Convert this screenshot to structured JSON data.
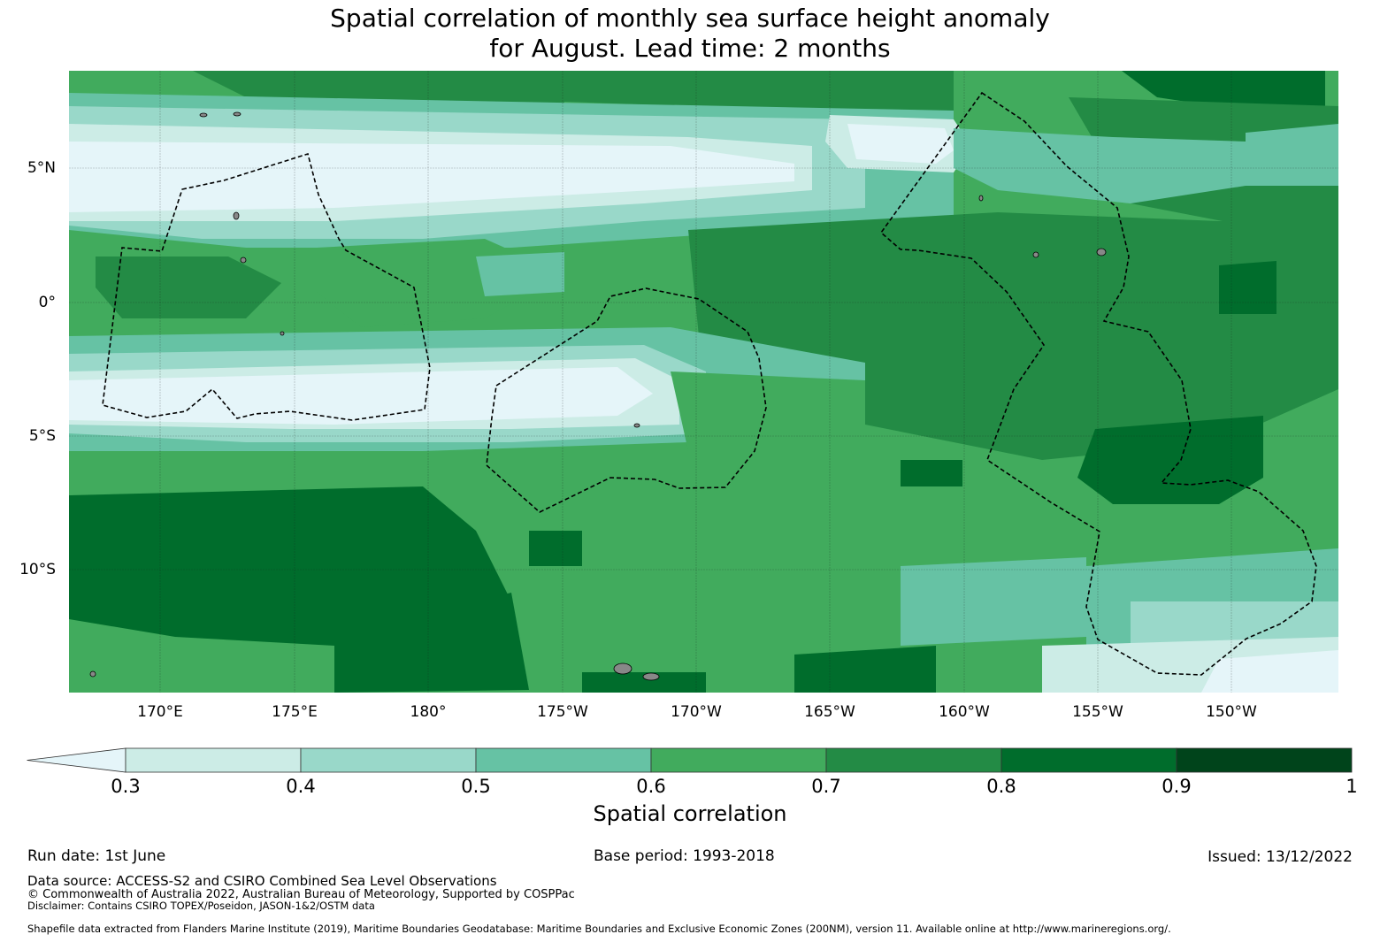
{
  "title": {
    "line1": "Spatial correlation of monthly sea surface height anomaly",
    "line2": "for August. Lead time: 2 months"
  },
  "map": {
    "lat_labels": [
      "5°N",
      "0°",
      "5°S",
      "10°S"
    ],
    "lon_labels": [
      "170°E",
      "175°E",
      "180°",
      "175°W",
      "170°W",
      "165°W",
      "160°W",
      "155°W",
      "150°W"
    ],
    "colors": {
      "below_0_3": "#e5f5f9",
      "c_0_3": "#ccece6",
      "c_0_4": "#99d8c9",
      "c_0_5": "#66c2a4",
      "c_0_6": "#41ab5d",
      "c_0_7": "#238b45",
      "c_0_8": "#006d2c",
      "c_0_9": "#00441b",
      "land": "#888888",
      "eez_boundary": "#000000"
    }
  },
  "colorbar": {
    "ticks": [
      "0.3",
      "0.4",
      "0.5",
      "0.6",
      "0.7",
      "0.8",
      "0.9",
      "1"
    ],
    "label": "Spatial correlation",
    "extend": "min"
  },
  "footer": {
    "run_date": "Run date: 1st June",
    "base_period": "Base period: 1993-2018",
    "issued": "Issued: 13/12/2022",
    "data_source": "Data source: ACCESS-S2 and CSIRO Combined Sea Level Observations",
    "copyright": "© Commonwealth of Australia 2022, Australian Bureau of Meteorology, Supported by COSPPac",
    "disclaimer": "Disclaimer: Contains CSIRO TOPEX/Poseidon, JASON-1&2/OSTM data",
    "shapefile": "Shapefile data extracted from Flanders Marine Institute (2019), Maritime Boundaries Geodatabase: Maritime Boundaries and Exclusive Economic Zones (200NM), version 11. Available online at http://www.marineregions.org/."
  }
}
